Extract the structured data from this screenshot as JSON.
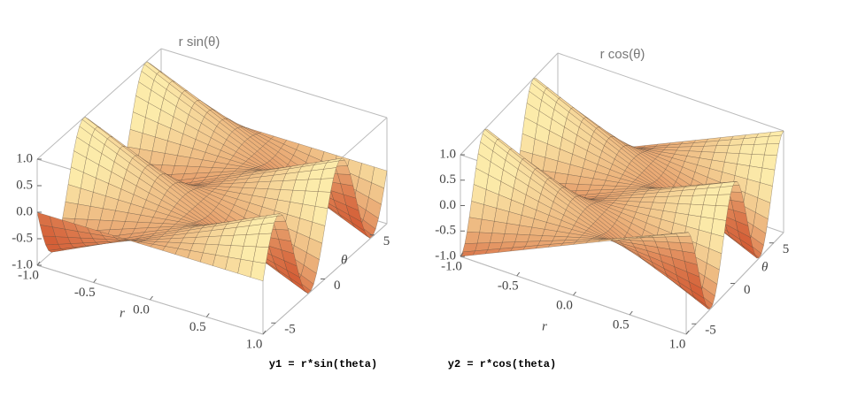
{
  "chart_data": [
    {
      "type": "surface",
      "title": "r sin(θ)",
      "caption": "y1 = r*sin(theta)",
      "xlabel": "r",
      "ylabel": "θ",
      "xlim": [
        -1,
        1
      ],
      "ylim": [
        -6.28,
        6.28
      ],
      "zlim": [
        -1,
        1
      ],
      "xticks": [
        {
          "value": -1,
          "label": "-1.0"
        },
        -0.5,
        {
          "value": 0,
          "label": "0.0"
        },
        0.5,
        {
          "value": 1,
          "label": "1.0"
        }
      ],
      "yticks": [
        -5,
        0,
        5
      ],
      "zticks": [
        {
          "value": 1,
          "label": "1.0"
        },
        0.5,
        {
          "value": 0,
          "label": "0.0"
        },
        -0.5,
        {
          "value": -1,
          "label": "-1.0"
        }
      ]
    },
    {
      "type": "surface",
      "title": "r cos(θ)",
      "caption": "y2 = r*cos(theta)",
      "xlabel": "r",
      "ylabel": "θ",
      "xlim": [
        -1,
        1
      ],
      "ylim": [
        -6.28,
        6.28
      ],
      "zlim": [
        -1,
        1
      ],
      "xticks": [
        {
          "value": -1,
          "label": "-1.0"
        },
        -0.5,
        {
          "value": 0,
          "label": "0.0"
        },
        0.5,
        {
          "value": 1,
          "label": "1.0"
        }
      ],
      "yticks": [
        -5,
        0,
        5
      ],
      "zticks": [
        {
          "value": 1,
          "label": "1.0"
        },
        0.5,
        {
          "value": 0,
          "label": "0.0"
        },
        -0.5,
        {
          "value": -1,
          "label": "-1.0"
        }
      ]
    }
  ]
}
